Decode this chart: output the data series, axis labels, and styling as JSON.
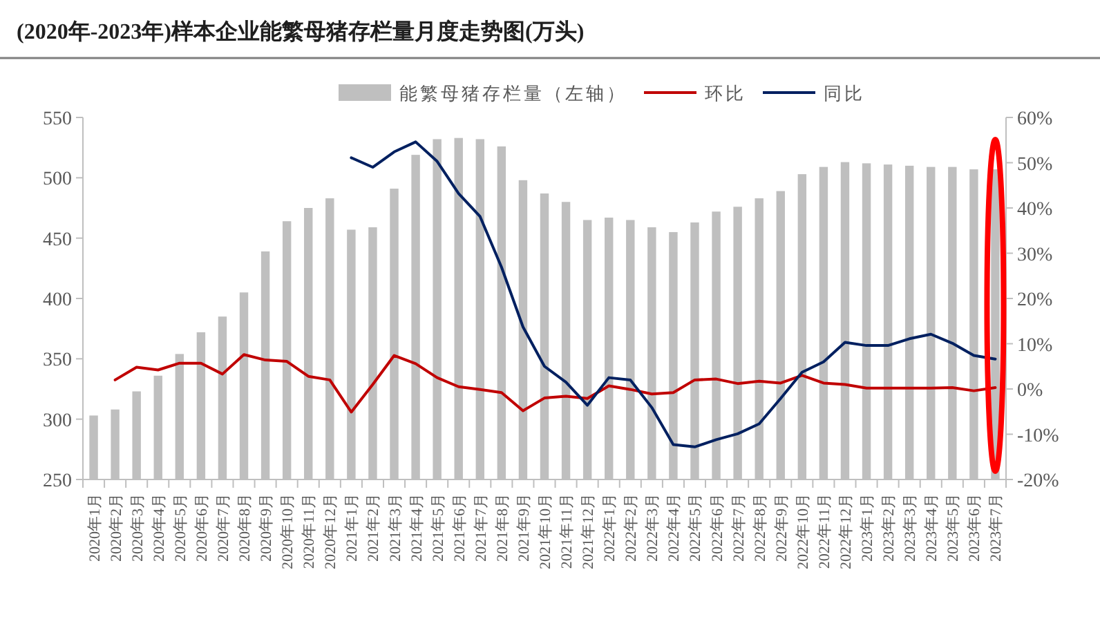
{
  "chart_data": {
    "type": "bar",
    "title": "(2020年-2023年)样本企业能繁母猪存栏量月度走势图(万头)",
    "legend": "top",
    "categories": [
      "2020年1月",
      "2020年2月",
      "2020年3月",
      "2020年4月",
      "2020年5月",
      "2020年6月",
      "2020年7月",
      "2020年8月",
      "2020年9月",
      "2020年10月",
      "2020年11月",
      "2020年12月",
      "2021年1月",
      "2021年2月",
      "2021年3月",
      "2021年4月",
      "2021年5月",
      "2021年6月",
      "2021年7月",
      "2021年8月",
      "2021年9月",
      "2021年10月",
      "2021年11月",
      "2021年12月",
      "2022年1月",
      "2022年2月",
      "2022年3月",
      "2022年4月",
      "2022年5月",
      "2022年6月",
      "2022年7月",
      "2022年8月",
      "2022年9月",
      "2022年10月",
      "2022年11月",
      "2022年12月",
      "2023年1月",
      "2023年2月",
      "2023年3月",
      "2023年4月",
      "2023年5月",
      "2023年6月",
      "2023年7月"
    ],
    "ylim": [
      250,
      550
    ],
    "yticks": [
      250,
      300,
      350,
      400,
      450,
      500,
      550
    ],
    "y2lim": [
      -20,
      60
    ],
    "y2ticks": [
      {
        "value": -20,
        "label": "-20%"
      },
      {
        "value": -10,
        "label": "-10%"
      },
      {
        "value": 0,
        "label": "0%"
      },
      {
        "value": 10,
        "label": "10%"
      },
      {
        "value": 20,
        "label": "20%"
      },
      {
        "value": 30,
        "label": "30%"
      },
      {
        "value": 40,
        "label": "40%"
      },
      {
        "value": 50,
        "label": "50%"
      },
      {
        "value": 60,
        "label": "60%"
      }
    ],
    "series": [
      {
        "name": "能繁母猪存栏量（左轴）",
        "color": "#bfbfbf",
        "values": [
          303,
          308,
          323,
          336,
          354,
          372,
          385,
          405,
          439,
          464,
          475,
          483,
          457,
          459,
          491,
          519,
          532,
          533,
          532,
          526,
          498,
          487,
          480,
          465,
          467,
          465,
          459,
          455,
          463,
          472,
          476,
          483,
          489,
          503,
          509,
          513,
          512,
          511,
          510,
          509,
          509,
          507,
          507
        ]
      },
      {
        "name": "环比",
        "type": "line",
        "axis": "y2",
        "color": "#c00000",
        "values": [
          null,
          2.0,
          4.8,
          4.2,
          5.7,
          5.7,
          3.3,
          7.6,
          6.4,
          6.1,
          2.8,
          2.0,
          -5.1,
          1.0,
          7.4,
          5.6,
          2.5,
          0.5,
          -0.1,
          -0.8,
          -4.8,
          -2.0,
          -1.6,
          -2.1,
          0.7,
          -0.1,
          -1.1,
          -0.8,
          2.0,
          2.2,
          1.2,
          1.7,
          1.3,
          3.0,
          1.3,
          1.0,
          0.2,
          0.2,
          0.2,
          0.2,
          0.3,
          -0.4,
          0.3
        ]
      },
      {
        "name": "同比",
        "type": "line",
        "axis": "y2",
        "color": "#002060",
        "values": [
          null,
          null,
          null,
          null,
          null,
          null,
          null,
          null,
          null,
          null,
          null,
          null,
          51.1,
          49.0,
          52.4,
          54.6,
          50.3,
          43.2,
          38.1,
          26.9,
          13.7,
          5.0,
          1.5,
          -3.6,
          2.5,
          2.0,
          -4.1,
          -12.3,
          -12.8,
          -11.2,
          -9.9,
          -7.7,
          -2.1,
          3.7,
          6.0,
          10.3,
          9.6,
          9.6,
          11.1,
          12.1,
          10.1,
          7.4,
          6.6
        ]
      }
    ]
  }
}
